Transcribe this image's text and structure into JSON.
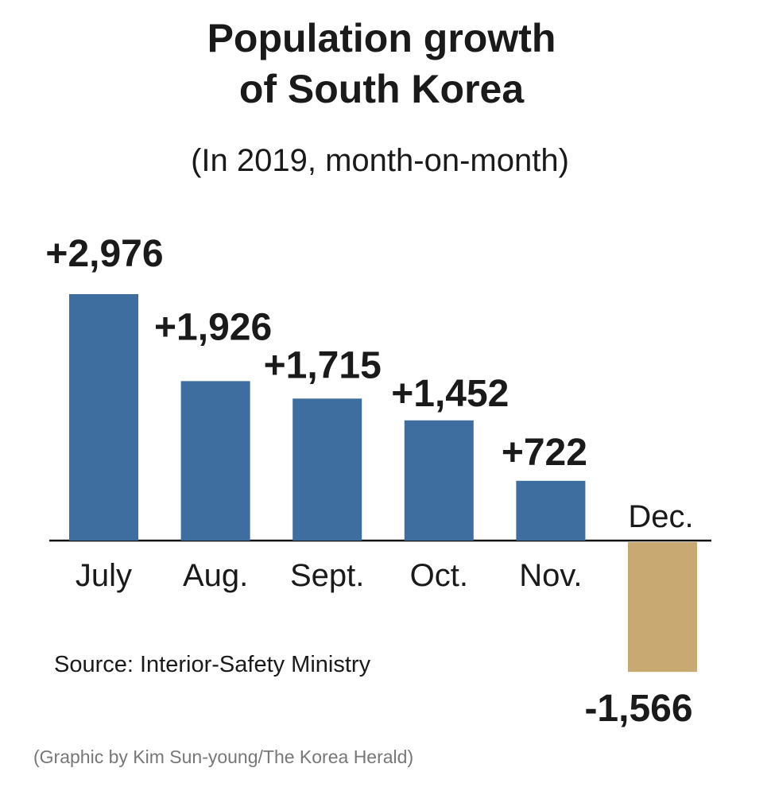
{
  "chart_data": {
    "type": "bar",
    "title": [
      "Population growth",
      "of South Korea"
    ],
    "subtitle": "(In 2019, month-on-month)",
    "categories": [
      "July",
      "Aug.",
      "Sept.",
      "Oct.",
      "Nov.",
      "Dec."
    ],
    "values": [
      2976,
      1926,
      1715,
      1452,
      722,
      -1566
    ],
    "value_labels": [
      "+2,976",
      "+1,926",
      "+1,715",
      "+1,452",
      "+722",
      "-1,566"
    ],
    "colors": [
      "#3d6e9f",
      "#3d6e9f",
      "#3d6e9f",
      "#3d6e9f",
      "#3d6e9f",
      "#c8a971"
    ],
    "source": "Source: Interior-Safety Ministry",
    "credit": "(Graphic by Kim Sun-young/The Korea Herald)"
  }
}
